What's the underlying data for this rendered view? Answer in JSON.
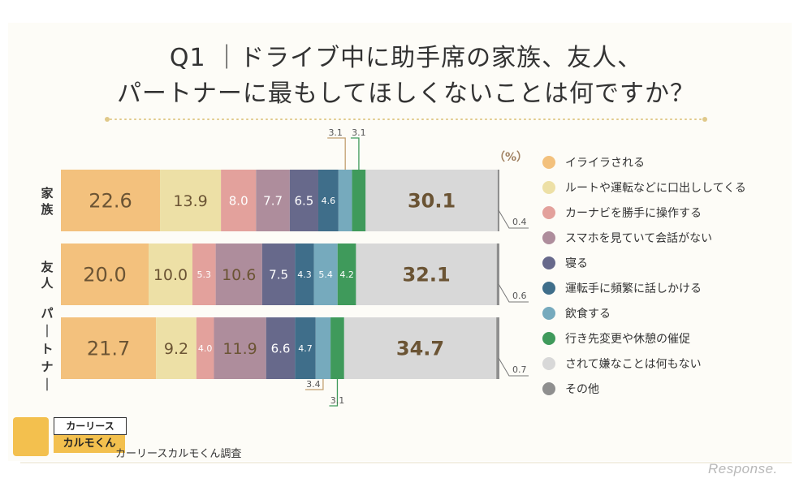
{
  "title_line1": "Q1 ｜ドライブ中に助手席の家族、友人、",
  "title_line2": "パートナーに最もしてほしくないことは何ですか？",
  "unit_label": "（%）",
  "credit": "カーリースカルモくん調査",
  "logo_top": "カーリース",
  "logo_bottom": "カルモくん",
  "watermark": "Response.",
  "chart_data": {
    "type": "bar",
    "orientation": "horizontal",
    "stacked": true,
    "unit": "%",
    "categories": [
      "家族",
      "友人",
      "パートナー"
    ],
    "series": [
      {
        "name": "イライラされる",
        "color": "#f3c17d",
        "values": [
          22.6,
          20.0,
          21.7
        ]
      },
      {
        "name": "ルートや運転などに口出ししてくる",
        "color": "#ede0a6",
        "values": [
          13.9,
          10.0,
          9.2
        ]
      },
      {
        "name": "カーナビを勝手に操作する",
        "color": "#e3a19c",
        "values": [
          8.0,
          5.3,
          4.0
        ]
      },
      {
        "name": "スマホを見ていて会話がない",
        "color": "#ae8d9c",
        "values": [
          7.7,
          10.6,
          11.9
        ]
      },
      {
        "name": "寝る",
        "color": "#67698b",
        "values": [
          6.5,
          7.5,
          6.6
        ]
      },
      {
        "name": "運転手に頻繁に話しかける",
        "color": "#3f6e8a",
        "values": [
          4.6,
          4.3,
          4.7
        ]
      },
      {
        "name": "飲食する",
        "color": "#76aabd",
        "values": [
          3.1,
          5.4,
          3.4
        ]
      },
      {
        "name": "行き先変更や休憩の催促",
        "color": "#3f9a5b",
        "values": [
          3.1,
          4.2,
          3.1
        ]
      },
      {
        "name": "されて嫌なことは何もない",
        "color": "#d8d8d8",
        "values": [
          30.1,
          32.1,
          34.7
        ]
      },
      {
        "name": "その他",
        "color": "#8f8f8f",
        "values": [
          0.4,
          0.6,
          0.7
        ]
      }
    ]
  }
}
